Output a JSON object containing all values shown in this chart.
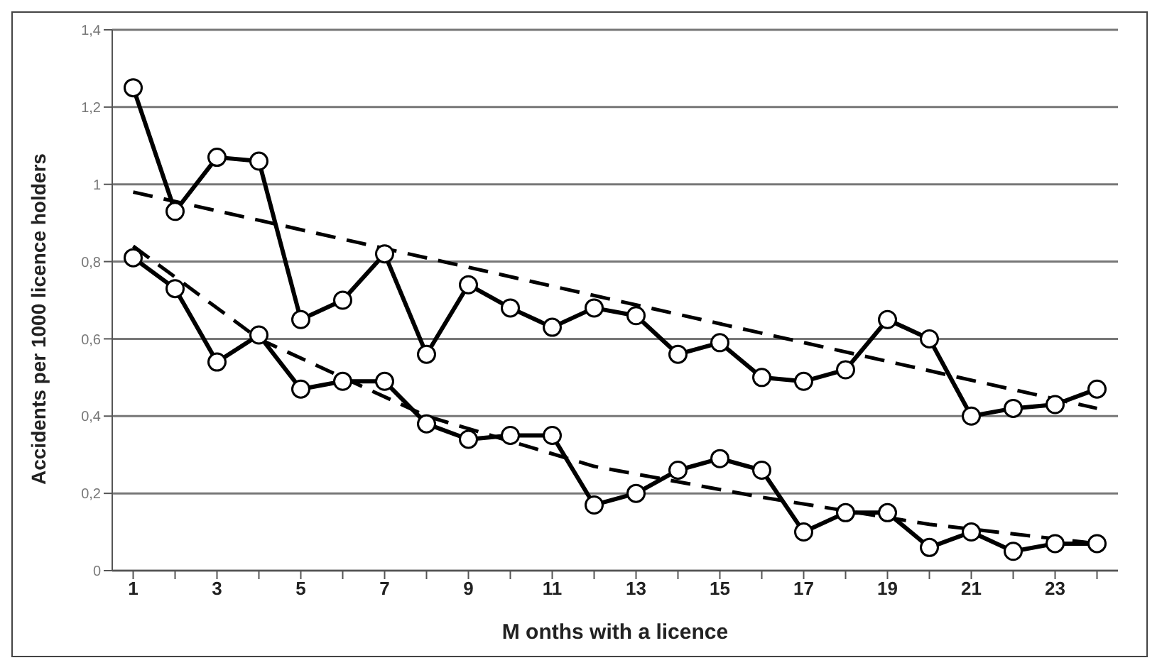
{
  "chart_data": {
    "type": "line",
    "xlabel": "M onths with a licence",
    "ylabel": "Accidents per 1000 licence holders",
    "x": [
      1,
      2,
      3,
      4,
      5,
      6,
      7,
      8,
      9,
      10,
      11,
      12,
      13,
      14,
      15,
      16,
      17,
      18,
      19,
      20,
      21,
      22,
      23,
      24
    ],
    "series": [
      {
        "color": "#000000",
        "marker": "circle",
        "line_style": "solid",
        "values": [
          1.25,
          0.93,
          1.07,
          1.06,
          0.65,
          0.7,
          0.82,
          0.56,
          0.74,
          0.68,
          0.63,
          0.68,
          0.66,
          0.56,
          0.59,
          0.5,
          0.49,
          0.52,
          0.65,
          0.6,
          0.4,
          0.42,
          0.43,
          0.47
        ]
      },
      {
        "color": "#000000",
        "marker": "circle",
        "line_style": "solid",
        "values": [
          0.81,
          0.73,
          0.54,
          0.61,
          0.47,
          0.49,
          0.49,
          0.38,
          0.34,
          0.35,
          0.35,
          0.17,
          0.2,
          0.26,
          0.29,
          0.26,
          0.1,
          0.15,
          0.15,
          0.06,
          0.1,
          0.05,
          0.07,
          0.07
        ]
      },
      {
        "color": "#000000",
        "marker": "none",
        "line_style": "dashed",
        "x": [
          1,
          24
        ],
        "values": [
          0.98,
          0.42
        ]
      },
      {
        "color": "#000000",
        "marker": "none",
        "line_style": "dashed",
        "x": [
          1,
          4,
          8,
          12,
          16,
          20,
          24
        ],
        "values": [
          0.84,
          0.6,
          0.4,
          0.27,
          0.19,
          0.12,
          0.07
        ]
      }
    ],
    "xlim": [
      0.5,
      24.5
    ],
    "xticks": [
      1,
      {
        "value": 2,
        "label": null
      },
      3,
      {
        "value": 4,
        "label": null
      },
      5,
      {
        "value": 6,
        "label": null
      },
      7,
      {
        "value": 8,
        "label": null
      },
      9,
      {
        "value": 10,
        "label": null
      },
      11,
      {
        "value": 12,
        "label": null
      },
      13,
      {
        "value": 14,
        "label": null
      },
      15,
      {
        "value": 16,
        "label": null
      },
      17,
      {
        "value": 18,
        "label": null
      },
      19,
      {
        "value": 20,
        "label": null
      },
      21,
      {
        "value": 22,
        "label": null
      },
      23,
      {
        "value": 24,
        "label": null
      }
    ],
    "ylim": [
      0,
      1.4
    ],
    "yticks": [
      0,
      {
        "value": 0.2,
        "label": "0,2"
      },
      {
        "value": 0.4,
        "label": "0,4"
      },
      {
        "value": 0.6,
        "label": "0,6"
      },
      {
        "value": 0.8,
        "label": "0,8"
      },
      1,
      {
        "value": 1.2,
        "label": "1,2"
      },
      {
        "value": 1.4,
        "label": "1,4"
      }
    ],
    "grid": "y",
    "legend": false
  }
}
